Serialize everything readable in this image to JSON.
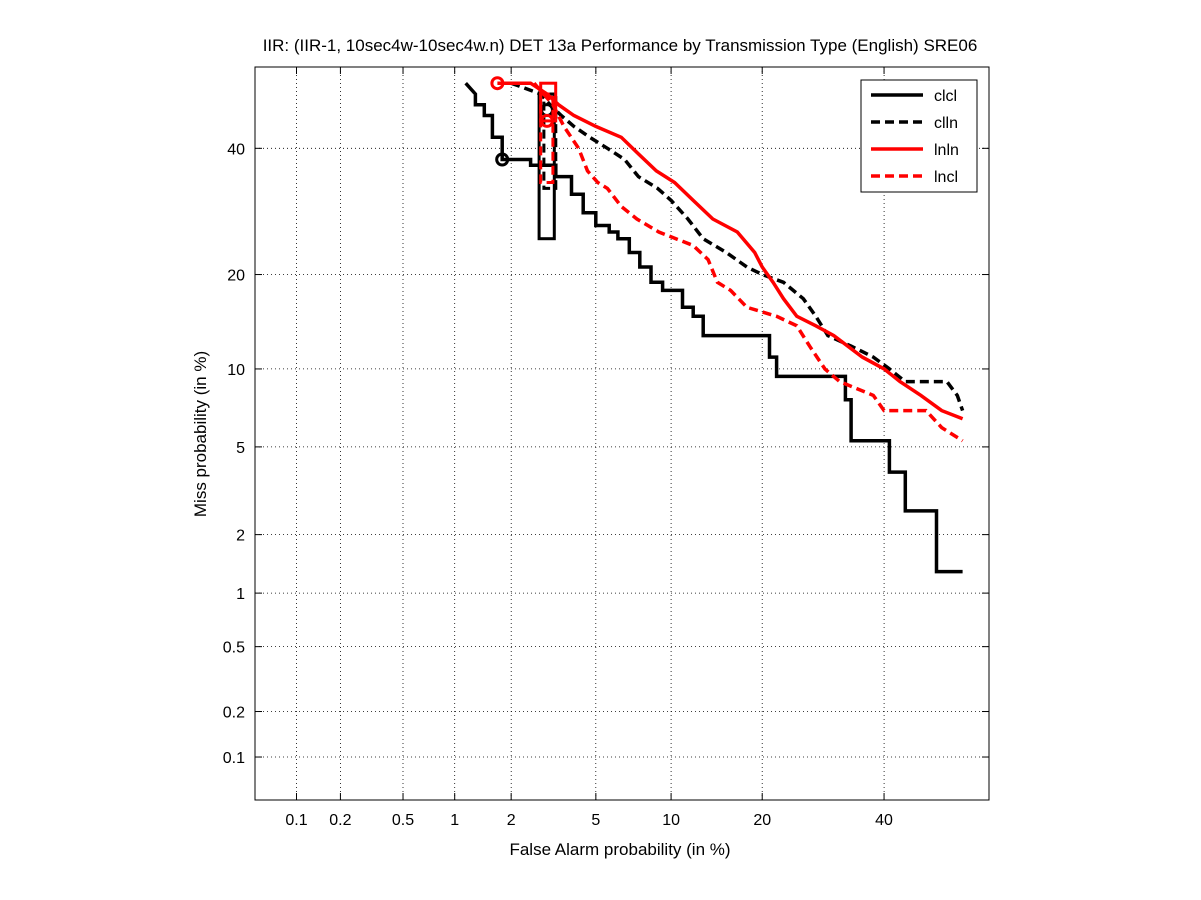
{
  "chart_data": {
    "type": "line",
    "title": "IIR: (IIR-1, 10sec4w-10sec4w.n) DET 13a Performance by Transmission Type (English) SRE06",
    "xlabel": "False Alarm probability (in %)",
    "ylabel": "Miss probability (in %)",
    "x_scale": "probit",
    "y_scale": "probit",
    "xlim": [
      0.05,
      60
    ],
    "ylim": [
      0.05,
      55
    ],
    "xticks": [
      0.1,
      0.2,
      0.5,
      1,
      2,
      5,
      10,
      20,
      40
    ],
    "xtick_labels": [
      "0.1",
      "0.2",
      "0.5",
      "1",
      "2",
      "5",
      "10",
      "20",
      "40"
    ],
    "yticks": [
      0.1,
      0.2,
      0.5,
      1,
      2,
      5,
      10,
      20,
      40
    ],
    "ytick_labels": [
      "0.1",
      "0.2",
      "0.5",
      "1",
      "2",
      "5",
      "10",
      "20",
      "40"
    ],
    "grid": true,
    "legend_position": "top-right",
    "series": [
      {
        "name": "clcl",
        "color": "#000000",
        "dash": "solid",
        "points": [
          [
            1.15,
            52
          ],
          [
            1.3,
            50
          ],
          [
            1.3,
            48
          ],
          [
            1.45,
            48
          ],
          [
            1.45,
            46
          ],
          [
            1.6,
            46
          ],
          [
            1.6,
            42
          ],
          [
            1.8,
            42
          ],
          [
            1.8,
            38
          ],
          [
            2.5,
            38
          ],
          [
            2.5,
            37
          ],
          [
            3.3,
            37
          ],
          [
            3.3,
            35
          ],
          [
            3.9,
            35
          ],
          [
            3.9,
            32
          ],
          [
            4.4,
            32
          ],
          [
            4.4,
            29
          ],
          [
            5.0,
            29
          ],
          [
            5.0,
            27
          ],
          [
            5.7,
            27
          ],
          [
            5.7,
            26
          ],
          [
            6.2,
            26
          ],
          [
            6.2,
            25
          ],
          [
            6.9,
            25
          ],
          [
            6.9,
            23
          ],
          [
            7.6,
            23
          ],
          [
            7.6,
            21
          ],
          [
            8.4,
            21
          ],
          [
            8.4,
            19
          ],
          [
            9.3,
            19
          ],
          [
            9.3,
            18
          ],
          [
            11.0,
            18
          ],
          [
            11.0,
            16
          ],
          [
            12.0,
            16
          ],
          [
            12.0,
            15
          ],
          [
            13.0,
            15
          ],
          [
            13.0,
            13
          ],
          [
            21.0,
            13
          ],
          [
            21.0,
            11
          ],
          [
            22.0,
            11
          ],
          [
            22.0,
            9.4
          ],
          [
            33.0,
            9.4
          ],
          [
            33.0,
            7.7
          ],
          [
            34.0,
            7.7
          ],
          [
            34.0,
            5.3
          ],
          [
            41.0,
            5.3
          ],
          [
            41.0,
            3.9
          ],
          [
            44.0,
            3.9
          ],
          [
            44.0,
            2.6
          ],
          [
            50.0,
            2.6
          ],
          [
            50.0,
            1.3
          ],
          [
            55.0,
            1.3
          ]
        ],
        "min_dcf_point": [
          1.8,
          38
        ],
        "actual_dcf_box": {
          "x_range": [
            2.75,
            3.25
          ],
          "y_range": [
            25,
            50
          ]
        }
      },
      {
        "name": "clln",
        "color": "#000000",
        "dash": "dashed",
        "points": [
          [
            2.0,
            52
          ],
          [
            2.8,
            50
          ],
          [
            3.1,
            48
          ],
          [
            3.5,
            46
          ],
          [
            4.0,
            44
          ],
          [
            4.7,
            42
          ],
          [
            5.6,
            40
          ],
          [
            6.6,
            38
          ],
          [
            7.5,
            35
          ],
          [
            8.9,
            33
          ],
          [
            10.0,
            31
          ],
          [
            11.5,
            28
          ],
          [
            13.0,
            25
          ],
          [
            15.5,
            23
          ],
          [
            18.0,
            21
          ],
          [
            20.0,
            20
          ],
          [
            23.0,
            19
          ],
          [
            26.0,
            17
          ],
          [
            28.0,
            15
          ],
          [
            30.0,
            13
          ],
          [
            34.0,
            12
          ],
          [
            38.0,
            11
          ],
          [
            41.0,
            10
          ],
          [
            44.0,
            9
          ],
          [
            52.0,
            9
          ],
          [
            54.0,
            8
          ],
          [
            55.0,
            7
          ]
        ],
        "min_dcf_point": [
          3.0,
          47
        ],
        "actual_dcf_box": {
          "x_range": [
            2.9,
            3.3
          ],
          "y_range": [
            33,
            50
          ]
        }
      },
      {
        "name": "lnln",
        "color": "#ff0000",
        "dash": "solid",
        "points": [
          [
            1.7,
            52
          ],
          [
            2.5,
            52
          ],
          [
            3.0,
            50
          ],
          [
            3.4,
            48
          ],
          [
            4.0,
            46
          ],
          [
            5.0,
            44
          ],
          [
            6.4,
            42
          ],
          [
            7.5,
            39
          ],
          [
            8.8,
            36
          ],
          [
            10.3,
            34
          ],
          [
            12.0,
            31
          ],
          [
            14.0,
            28
          ],
          [
            16.8,
            26
          ],
          [
            19.0,
            23
          ],
          [
            20.0,
            21
          ],
          [
            21.5,
            19
          ],
          [
            23.0,
            17
          ],
          [
            25.0,
            15
          ],
          [
            28.0,
            14
          ],
          [
            31.0,
            13
          ],
          [
            36.0,
            11
          ],
          [
            40.0,
            10
          ],
          [
            43.0,
            9
          ],
          [
            47.0,
            8
          ],
          [
            51.0,
            7
          ],
          [
            55.0,
            6.5
          ]
        ],
        "min_dcf_point": [
          1.7,
          52
        ],
        "actual_dcf_box": {
          "x_range": [
            2.8,
            3.3
          ],
          "y_range": [
            45,
            52
          ]
        }
      },
      {
        "name": "lncl",
        "color": "#ff0000",
        "dash": "dashed",
        "points": [
          [
            2.6,
            52
          ],
          [
            3.2,
            48
          ],
          [
            3.6,
            44
          ],
          [
            4.2,
            40
          ],
          [
            4.6,
            36
          ],
          [
            5.1,
            34
          ],
          [
            5.6,
            33
          ],
          [
            6.4,
            30
          ],
          [
            7.4,
            28
          ],
          [
            9.0,
            26
          ],
          [
            12.0,
            24
          ],
          [
            13.5,
            22
          ],
          [
            14.5,
            19
          ],
          [
            16.0,
            18
          ],
          [
            18.0,
            16
          ],
          [
            22.0,
            15
          ],
          [
            25.0,
            14
          ],
          [
            27.0,
            12
          ],
          [
            29.5,
            10
          ],
          [
            32.0,
            9
          ],
          [
            38.0,
            8
          ],
          [
            40.0,
            7
          ],
          [
            48.0,
            7
          ],
          [
            51.0,
            6
          ],
          [
            55.0,
            5.3
          ]
        ],
        "min_dcf_point": [
          3.0,
          45
        ],
        "actual_dcf_box": {
          "x_range": [
            2.8,
            3.2
          ],
          "y_range": [
            34,
            50
          ]
        }
      }
    ]
  }
}
